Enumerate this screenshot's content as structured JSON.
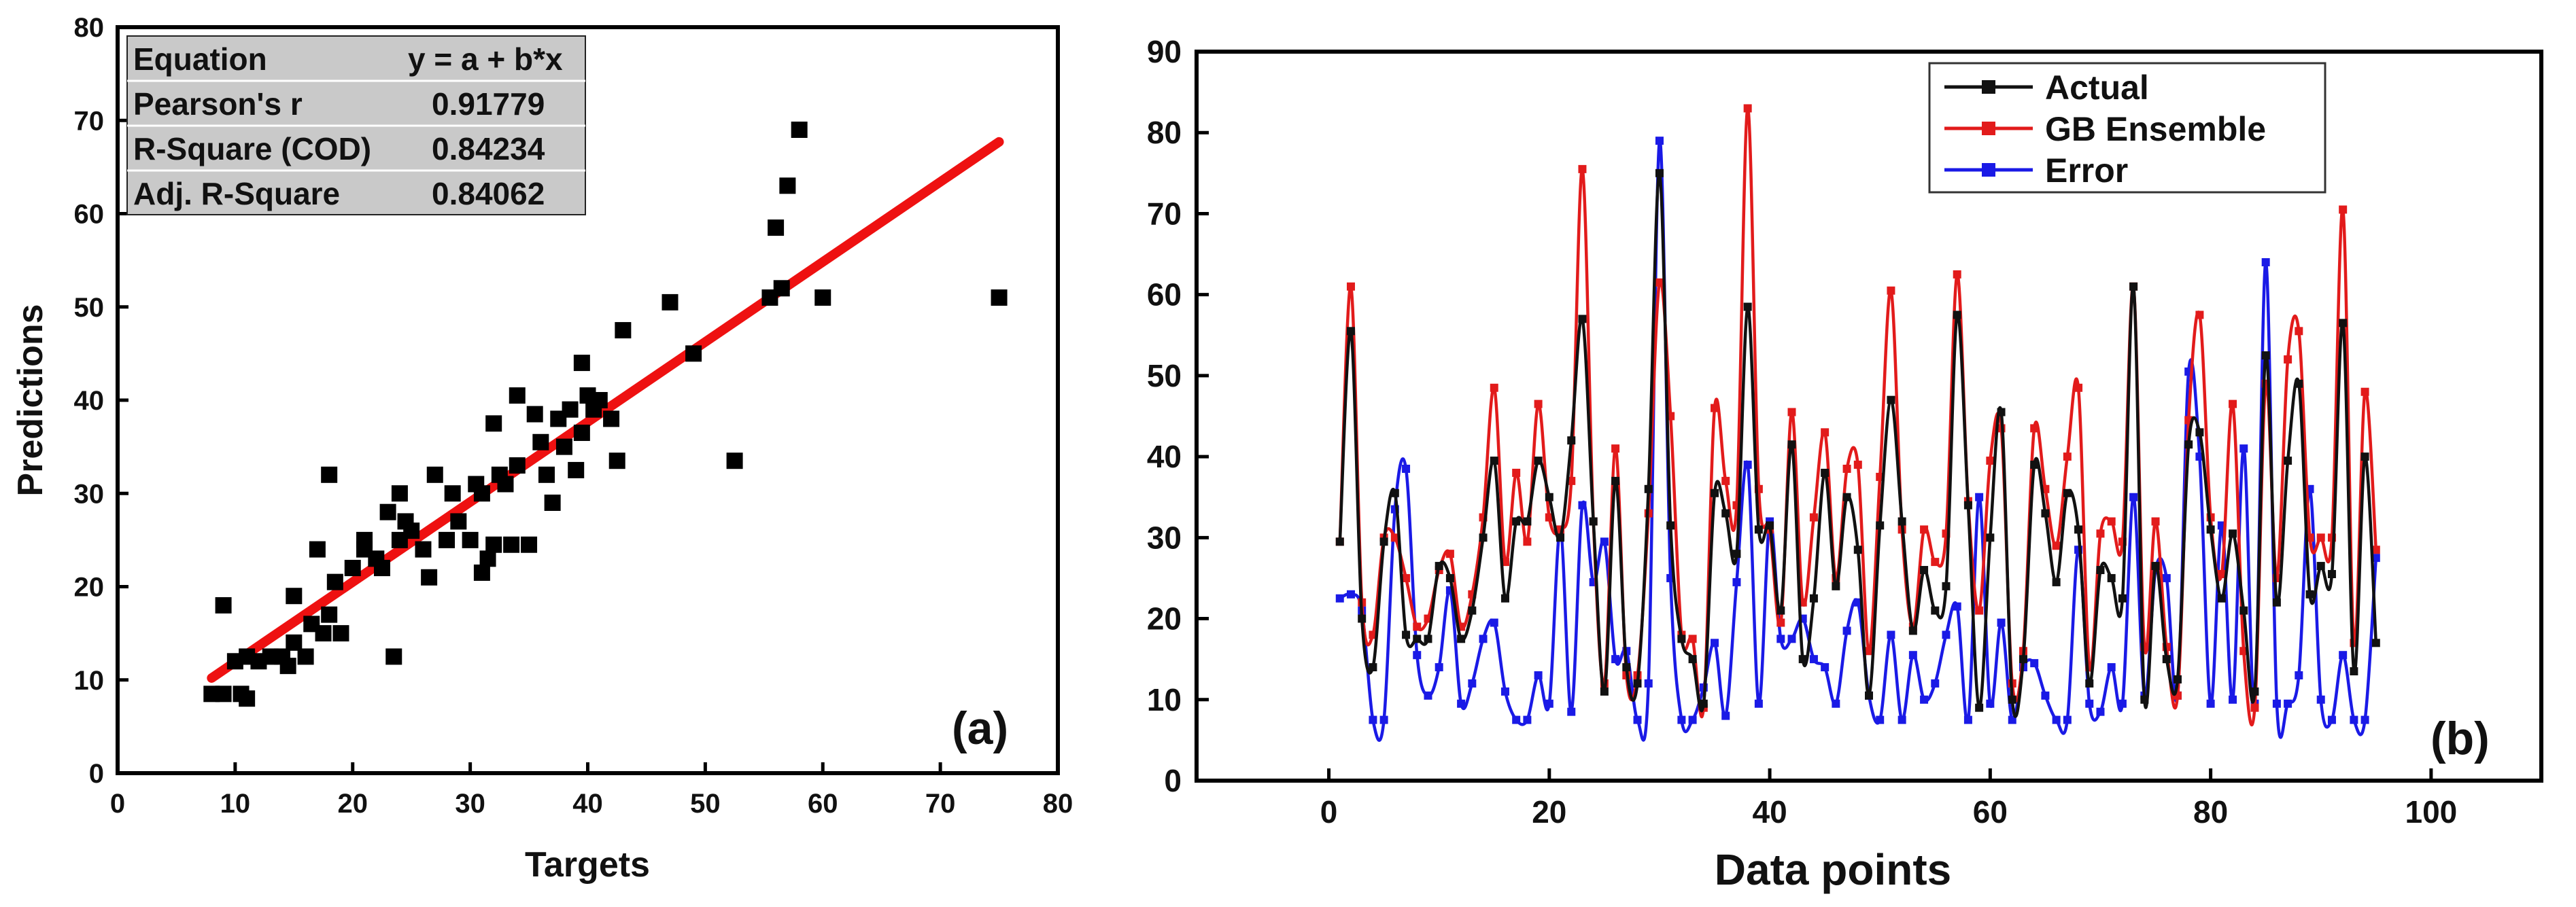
{
  "chart_data": [
    {
      "panel_label": "(a)",
      "type": "scatter",
      "xlabel": "Targets",
      "ylabel": "Predictions",
      "xlim": [
        0,
        80
      ],
      "ylim": [
        0,
        80
      ],
      "xticks": [
        0,
        10,
        20,
        30,
        40,
        50,
        60,
        70,
        80
      ],
      "yticks": [
        0,
        10,
        20,
        30,
        40,
        50,
        60,
        70,
        80
      ],
      "marker_color": "#000000",
      "fit_color": "#ee1111",
      "fit_line": {
        "x": [
          8,
          75
        ],
        "y": [
          10.2,
          67.7
        ]
      },
      "stats_table": [
        [
          "Equation",
          "y = a + b*x"
        ],
        [
          "Pearson's r",
          "0.91779"
        ],
        [
          "R-Square (COD)",
          "0.84234"
        ],
        [
          "Adj. R-Square",
          "0.84062"
        ]
      ],
      "points": [
        [
          8,
          8.5
        ],
        [
          9,
          8.5
        ],
        [
          9,
          18
        ],
        [
          10,
          12
        ],
        [
          10.5,
          8.5
        ],
        [
          11,
          8
        ],
        [
          11,
          12.5
        ],
        [
          12,
          12
        ],
        [
          13,
          12.5
        ],
        [
          14,
          12.5
        ],
        [
          14.5,
          11.5
        ],
        [
          15,
          19
        ],
        [
          15,
          14
        ],
        [
          16,
          12.5
        ],
        [
          16.5,
          16
        ],
        [
          17,
          24
        ],
        [
          17.5,
          15
        ],
        [
          18,
          17
        ],
        [
          18,
          32
        ],
        [
          18.5,
          20.5
        ],
        [
          19,
          15
        ],
        [
          20,
          22
        ],
        [
          21,
          24
        ],
        [
          21,
          25
        ],
        [
          22,
          23
        ],
        [
          22.5,
          22
        ],
        [
          23,
          28
        ],
        [
          23.5,
          12.5
        ],
        [
          24,
          25
        ],
        [
          24,
          30
        ],
        [
          24.5,
          27
        ],
        [
          25,
          26
        ],
        [
          26,
          24
        ],
        [
          26.5,
          21
        ],
        [
          27,
          32
        ],
        [
          28,
          25
        ],
        [
          28.5,
          30
        ],
        [
          29,
          27
        ],
        [
          30,
          25
        ],
        [
          30.5,
          31
        ],
        [
          31,
          21.5
        ],
        [
          31,
          30
        ],
        [
          31.5,
          23
        ],
        [
          32,
          24.5
        ],
        [
          32,
          37.5
        ],
        [
          32.5,
          32
        ],
        [
          33,
          31
        ],
        [
          33.5,
          24.5
        ],
        [
          34,
          33
        ],
        [
          34,
          40.5
        ],
        [
          35,
          24.5
        ],
        [
          35.5,
          38.5
        ],
        [
          36,
          35.5
        ],
        [
          36.5,
          32
        ],
        [
          37,
          29
        ],
        [
          37.5,
          38
        ],
        [
          38,
          35
        ],
        [
          38.5,
          39
        ],
        [
          39,
          32.5
        ],
        [
          39.5,
          36.5
        ],
        [
          39.5,
          44
        ],
        [
          40,
          40.5
        ],
        [
          40.5,
          39
        ],
        [
          41,
          40
        ],
        [
          42,
          38
        ],
        [
          42.5,
          33.5
        ],
        [
          43,
          47.5
        ],
        [
          47,
          50.5
        ],
        [
          49,
          45
        ],
        [
          52.5,
          33.5
        ],
        [
          55.5,
          51
        ],
        [
          56,
          58.5
        ],
        [
          56.5,
          52
        ],
        [
          57,
          63
        ],
        [
          58,
          69
        ],
        [
          60,
          51
        ],
        [
          75,
          51
        ]
      ]
    },
    {
      "panel_label": "(b)",
      "type": "line",
      "xlabel": "Data points",
      "ylabel": "",
      "xlim": [
        -12,
        110
      ],
      "ylim": [
        0,
        90
      ],
      "xticks": [
        0,
        20,
        40,
        60,
        80,
        100
      ],
      "yticks": [
        0,
        10,
        20,
        30,
        40,
        50,
        60,
        70,
        80,
        90
      ],
      "legend_position": "top-center",
      "series": [
        {
          "name": "Actual",
          "color": "#111111",
          "values": [
            29.5,
            55.5,
            20,
            14,
            29.5,
            35.5,
            18,
            17.5,
            17.5,
            26.5,
            25,
            17.5,
            21,
            30,
            39.5,
            22.5,
            32,
            32,
            39.5,
            35,
            30,
            42,
            57,
            32,
            11,
            37,
            14,
            12,
            36,
            75,
            31.5,
            17.5,
            15,
            9.5,
            35.5,
            33,
            28,
            58.5,
            31,
            31.5,
            21,
            41.5,
            15,
            22.5,
            38,
            24,
            35,
            28.5,
            10.5,
            31.5,
            47,
            32,
            18.5,
            26,
            21,
            24,
            57.5,
            34,
            9,
            30,
            45.5,
            10,
            15,
            39,
            33,
            24.5,
            35.5,
            31,
            12,
            26,
            25,
            22.5,
            61,
            10,
            26.5,
            15,
            12.5,
            41.5,
            43,
            31,
            22.5,
            30.5,
            21,
            11,
            52.5,
            22,
            39.5,
            49,
            23,
            26.5,
            25.5,
            56.5,
            13.5,
            40,
            17
          ]
        },
        {
          "name": "GB Ensemble",
          "color": "#e21b1b",
          "values": [
            29.5,
            61,
            22,
            18,
            30,
            30,
            25,
            19,
            20,
            26,
            28,
            19,
            23,
            32.5,
            48.5,
            27,
            38,
            29.5,
            46.5,
            32.5,
            31,
            37,
            75.5,
            32,
            12,
            41,
            13,
            13,
            33,
            61.5,
            45,
            18,
            17.5,
            9,
            46,
            37,
            34,
            83,
            36,
            31,
            19.5,
            45.5,
            22,
            32.5,
            43,
            25,
            38.5,
            39,
            16,
            37.5,
            60.5,
            31,
            19,
            31,
            27,
            30.5,
            62.5,
            34.5,
            21,
            39.5,
            43.5,
            12,
            16,
            43.5,
            36,
            29,
            40,
            48.5,
            14,
            30.5,
            32,
            29.5,
            61,
            16.5,
            32,
            16.5,
            10.5,
            44.5,
            57.5,
            32.5,
            25.5,
            46.5,
            16,
            9,
            49,
            25,
            52,
            55.5,
            30,
            30,
            30,
            70.5,
            17,
            48,
            28.5
          ]
        },
        {
          "name": "Error",
          "color": "#1a1ae6",
          "values": [
            22.5,
            23,
            21,
            7.5,
            7.5,
            33.5,
            38.5,
            15.5,
            10.5,
            14,
            23.5,
            9.5,
            12,
            17.5,
            19.5,
            11,
            7.5,
            7.5,
            13,
            9.5,
            31,
            8.5,
            34,
            24.5,
            29.5,
            15,
            16,
            7.5,
            12,
            79,
            25,
            7.5,
            7.5,
            11.5,
            17,
            8,
            24.5,
            39,
            9.5,
            32,
            17.5,
            17.5,
            20,
            15,
            14,
            9.5,
            18.5,
            22,
            10.5,
            7.5,
            18,
            7.5,
            15.5,
            10,
            12,
            18,
            21.5,
            7.5,
            35,
            9.5,
            19.5,
            7.5,
            14,
            14.5,
            10.5,
            7.5,
            7.5,
            28.5,
            9.5,
            8.5,
            14,
            9.5,
            35,
            10.5,
            26,
            25,
            10.5,
            50.5,
            40,
            9.5,
            31.5,
            10,
            41,
            9.5,
            64,
            9.5,
            9.5,
            13,
            36,
            10,
            7.5,
            15.5,
            7.5,
            7.5,
            27.5
          ]
        }
      ]
    }
  ]
}
